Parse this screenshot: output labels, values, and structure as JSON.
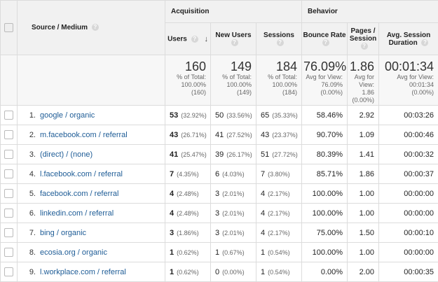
{
  "header": {
    "source_medium": "Source / Medium",
    "acquisition": "Acquisition",
    "behavior": "Behavior",
    "columns": {
      "users": "Users",
      "new_users": "New Users",
      "sessions": "Sessions",
      "bounce_rate": "Bounce Rate",
      "pages_session": "Pages / Session",
      "avg_session_duration": "Avg. Session Duration"
    },
    "help_glyph": "?",
    "sort_glyph": "↓"
  },
  "totals": {
    "users": {
      "value": "160",
      "l1": "% of Total:",
      "l2": "100.00%",
      "l3": "(160)"
    },
    "new_users": {
      "value": "149",
      "l1": "% of Total:",
      "l2": "100.00%",
      "l3": "(149)"
    },
    "sessions": {
      "value": "184",
      "l1": "% of Total:",
      "l2": "100.00%",
      "l3": "(184)"
    },
    "bounce_rate": {
      "value": "76.09%",
      "l1": "Avg for View:",
      "l2": "76.09%",
      "l3": "(0.00%)"
    },
    "pages_session": {
      "value": "1.86",
      "l1": "Avg for",
      "l2": "View:",
      "l3": "1.86",
      "l4": "(0.00%)"
    },
    "avg_session_duration": {
      "value": "00:01:34",
      "l1": "Avg for View:",
      "l2": "00:01:34",
      "l3": "(0.00%)"
    }
  },
  "rows": [
    {
      "idx": "1.",
      "source": "google / organic",
      "users": "53",
      "users_pct": "(32.92%)",
      "new_users": "50",
      "new_users_pct": "(33.56%)",
      "sessions": "65",
      "sessions_pct": "(35.33%)",
      "bounce": "58.46%",
      "pages": "2.92",
      "duration": "00:03:26"
    },
    {
      "idx": "2.",
      "source": "m.facebook.com / referral",
      "users": "43",
      "users_pct": "(26.71%)",
      "new_users": "41",
      "new_users_pct": "(27.52%)",
      "sessions": "43",
      "sessions_pct": "(23.37%)",
      "bounce": "90.70%",
      "pages": "1.09",
      "duration": "00:00:46"
    },
    {
      "idx": "3.",
      "source": "(direct) / (none)",
      "users": "41",
      "users_pct": "(25.47%)",
      "new_users": "39",
      "new_users_pct": "(26.17%)",
      "sessions": "51",
      "sessions_pct": "(27.72%)",
      "bounce": "80.39%",
      "pages": "1.41",
      "duration": "00:00:32"
    },
    {
      "idx": "4.",
      "source": "l.facebook.com / referral",
      "users": "7",
      "users_pct": "(4.35%)",
      "new_users": "6",
      "new_users_pct": "(4.03%)",
      "sessions": "7",
      "sessions_pct": "(3.80%)",
      "bounce": "85.71%",
      "pages": "1.86",
      "duration": "00:00:37"
    },
    {
      "idx": "5.",
      "source": "facebook.com / referral",
      "users": "4",
      "users_pct": "(2.48%)",
      "new_users": "3",
      "new_users_pct": "(2.01%)",
      "sessions": "4",
      "sessions_pct": "(2.17%)",
      "bounce": "100.00%",
      "pages": "1.00",
      "duration": "00:00:00"
    },
    {
      "idx": "6.",
      "source": "linkedin.com / referral",
      "users": "4",
      "users_pct": "(2.48%)",
      "new_users": "3",
      "new_users_pct": "(2.01%)",
      "sessions": "4",
      "sessions_pct": "(2.17%)",
      "bounce": "100.00%",
      "pages": "1.00",
      "duration": "00:00:00"
    },
    {
      "idx": "7.",
      "source": "bing / organic",
      "users": "3",
      "users_pct": "(1.86%)",
      "new_users": "3",
      "new_users_pct": "(2.01%)",
      "sessions": "4",
      "sessions_pct": "(2.17%)",
      "bounce": "75.00%",
      "pages": "1.50",
      "duration": "00:00:10"
    },
    {
      "idx": "8.",
      "source": "ecosia.org / organic",
      "users": "1",
      "users_pct": "(0.62%)",
      "new_users": "1",
      "new_users_pct": "(0.67%)",
      "sessions": "1",
      "sessions_pct": "(0.54%)",
      "bounce": "100.00%",
      "pages": "1.00",
      "duration": "00:00:00"
    },
    {
      "idx": "9.",
      "source": "l.workplace.com / referral",
      "users": "1",
      "users_pct": "(0.62%)",
      "new_users": "0",
      "new_users_pct": "(0.00%)",
      "sessions": "1",
      "sessions_pct": "(0.54%)",
      "bounce": "0.00%",
      "pages": "2.00",
      "duration": "00:00:35"
    }
  ]
}
